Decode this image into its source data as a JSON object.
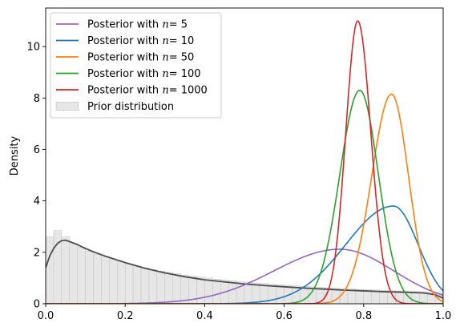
{
  "chart_data": {
    "type": "line",
    "ylabel": "Density",
    "xlim": [
      0,
      1
    ],
    "ylim": [
      0,
      11.5
    ],
    "x_ticks": [
      "0.0",
      "0.2",
      "0.4",
      "0.6",
      "0.8",
      "1.0"
    ],
    "y_ticks": [
      "0",
      "2",
      "4",
      "6",
      "8",
      "10"
    ],
    "legend_position": "top-left",
    "series": [
      {
        "name": "Posterior with n = 5",
        "legend_prefix": "Posterior with ",
        "legend_var": "n",
        "legend_value": "= 5",
        "color": "#9467bd",
        "mode": 0.74,
        "peak": 2.12,
        "sd_left": 0.165,
        "sd_right": 0.135
      },
      {
        "name": "Posterior with n = 10",
        "legend_prefix": "Posterior with ",
        "legend_var": "n",
        "legend_value": "= 10",
        "color": "#1f77b4",
        "mode": 0.875,
        "peak": 3.8,
        "sd_left": 0.12,
        "sd_right": 0.062
      },
      {
        "name": "Posterior with n = 50",
        "legend_prefix": "Posterior with ",
        "legend_var": "n",
        "legend_value": "= 50",
        "color": "#ff7f0e",
        "mode": 0.87,
        "peak": 8.15,
        "sd_left": 0.05,
        "sd_right": 0.043
      },
      {
        "name": "Posterior with n = 100",
        "legend_prefix": "Posterior with ",
        "legend_var": "n",
        "legend_value": "= 100",
        "color": "#2ca02c",
        "mode": 0.79,
        "peak": 8.3,
        "sd_left": 0.05,
        "sd_right": 0.047
      },
      {
        "name": "Posterior with n = 1000",
        "legend_prefix": "Posterior with ",
        "legend_var": "n",
        "legend_value": "= 1000",
        "color": "#d62728",
        "mode": 0.785,
        "peak": 11.0,
        "sd_left": 0.03,
        "sd_right": 0.033
      }
    ],
    "prior": {
      "name": "Prior distribution",
      "hist_color": "#e6e6e6",
      "hist_edge": "#bbbbbb",
      "density_color": "#4d4d4d",
      "bin_width": 0.02,
      "hist_values": [
        2.6,
        2.85,
        2.6,
        2.35,
        2.2,
        2.05,
        1.93,
        1.82,
        1.72,
        1.63,
        1.55,
        1.47,
        1.4,
        1.33,
        1.27,
        1.22,
        1.17,
        1.12,
        1.08,
        1.04,
        1.0,
        0.96,
        0.93,
        0.9,
        0.87,
        0.84,
        0.81,
        0.79,
        0.76,
        0.74,
        0.72,
        0.7,
        0.68,
        0.66,
        0.64,
        0.62,
        0.61,
        0.59,
        0.58,
        0.56,
        0.55,
        0.54,
        0.52,
        0.51,
        0.5,
        0.49,
        0.48,
        0.47,
        0.46,
        0.45
      ],
      "density_x": [
        0.0,
        0.01,
        0.02,
        0.03,
        0.04,
        0.05,
        0.06,
        0.08,
        0.1,
        0.12,
        0.15,
        0.2,
        0.25,
        0.3,
        0.35,
        0.4,
        0.45,
        0.5,
        0.55,
        0.6,
        0.65,
        0.7,
        0.75,
        0.8,
        0.85,
        0.9,
        0.95,
        0.98,
        1.0
      ],
      "density_y": [
        1.4,
        1.85,
        2.15,
        2.35,
        2.45,
        2.47,
        2.42,
        2.3,
        2.15,
        2.02,
        1.85,
        1.6,
        1.38,
        1.2,
        1.05,
        0.93,
        0.85,
        0.77,
        0.71,
        0.66,
        0.61,
        0.57,
        0.53,
        0.5,
        0.47,
        0.45,
        0.42,
        0.35,
        0.22
      ]
    }
  }
}
